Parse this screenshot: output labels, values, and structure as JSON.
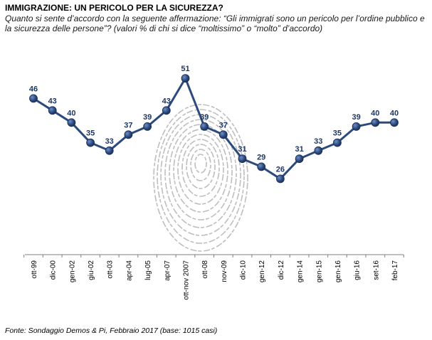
{
  "title": "IMMIGRAZIONE: UN PERICOLO PER LA SICUREZZA?",
  "subtitle": "Quanto si sente d’accordo con la seguente affermazione: “Gli immigrati sono un pericolo per l’ordine pubblico e la sicurezza delle persone”? (valori % di chi si dice “moltissimo” o “molto” d’accordo)",
  "footer": "Fonte: Sondaggio Demos & Pi, Febbraio 2017 (base: 1015 casi)",
  "chart_data": {
    "type": "line",
    "categories": [
      "ott-99",
      "dic-00",
      "gen-02",
      "giu-02",
      "ott-03",
      "apr-04",
      "lug-05",
      "apr-07",
      "ott-nov 2007",
      "ott-08",
      "nov-09",
      "dic-10",
      "gen-12",
      "dic-12",
      "gen-14",
      "gen-15",
      "gen-16",
      "giu-16",
      "set-16",
      "feb-17"
    ],
    "values": [
      46,
      43,
      40,
      35,
      33,
      37,
      39,
      43,
      51,
      39,
      37,
      31,
      29,
      26,
      31,
      33,
      35,
      39,
      40,
      40
    ],
    "xlabel": "",
    "ylabel": "",
    "ylim": [
      0,
      60
    ],
    "grid": false,
    "legend": "none",
    "line_color": "#2c4a7e",
    "marker_color": "#2c4a7e",
    "label_color": "#1f3864"
  }
}
